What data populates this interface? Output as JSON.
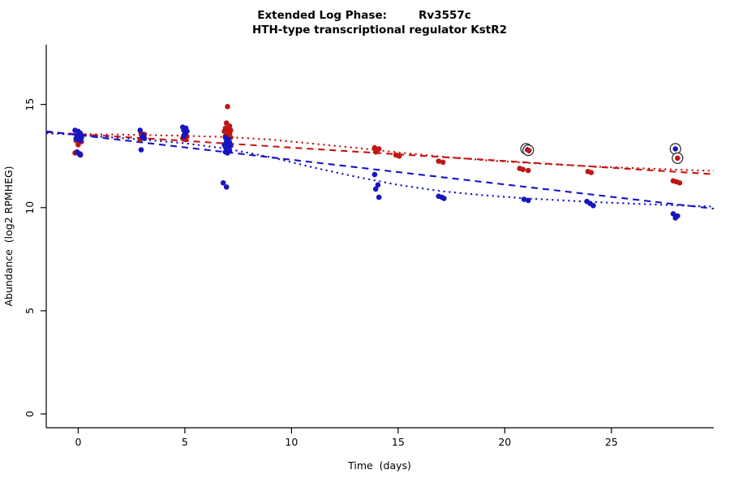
{
  "chart_data": {
    "type": "scatter",
    "title": {
      "prefix": "Extended Log Phase:",
      "gene": "Rv3557c",
      "subtitle": "HTH-type transcriptional regulator KstR2"
    },
    "xlabel": "Time  (days)",
    "ylabel": "Abundance  (log2 RPMHEG)",
    "xlim": [
      -1.5,
      29.8
    ],
    "ylim": [
      -0.67,
      17.9
    ],
    "xticks": [
      0,
      5,
      10,
      15,
      20,
      25
    ],
    "yticks": [
      0,
      5,
      10,
      15
    ],
    "grid": false,
    "legend": null,
    "colors": {
      "red": "#c01616",
      "blue": "#1616c0",
      "highlight_ring": "#222222"
    },
    "series": [
      {
        "name": "red-condition",
        "color": "#c01616",
        "points": [
          [
            0.05,
            13.3
          ],
          [
            -0.1,
            13.25
          ],
          [
            0.15,
            13.2
          ],
          [
            0.0,
            13.05
          ],
          [
            -0.15,
            12.65
          ],
          [
            0.1,
            12.6
          ],
          [
            2.95,
            13.6
          ],
          [
            3.1,
            13.55
          ],
          [
            3.0,
            13.45
          ],
          [
            2.9,
            13.3
          ],
          [
            4.95,
            13.5
          ],
          [
            5.1,
            13.45
          ],
          [
            5.0,
            13.4
          ],
          [
            4.9,
            13.35
          ],
          [
            5.05,
            13.3
          ],
          [
            7.0,
            14.9
          ],
          [
            6.95,
            14.1
          ],
          [
            7.1,
            13.95
          ],
          [
            6.9,
            13.85
          ],
          [
            7.05,
            13.8
          ],
          [
            7.15,
            13.75
          ],
          [
            6.85,
            13.7
          ],
          [
            7.0,
            13.65
          ],
          [
            7.1,
            13.6
          ],
          [
            6.95,
            13.55
          ],
          [
            7.05,
            13.5
          ],
          [
            6.9,
            13.45
          ],
          [
            7.15,
            13.4
          ],
          [
            7.0,
            13.35
          ],
          [
            6.98,
            13.25
          ],
          [
            13.9,
            12.9
          ],
          [
            14.1,
            12.85
          ],
          [
            14.0,
            12.75
          ],
          [
            13.95,
            12.7
          ],
          [
            14.9,
            12.55
          ],
          [
            15.05,
            12.5
          ],
          [
            16.9,
            12.25
          ],
          [
            17.1,
            12.2
          ],
          [
            20.7,
            11.9
          ],
          [
            20.85,
            11.85
          ],
          [
            21.1,
            11.8
          ],
          [
            23.9,
            11.75
          ],
          [
            24.05,
            11.7
          ],
          [
            27.9,
            11.3
          ],
          [
            28.05,
            11.25
          ],
          [
            28.2,
            11.2
          ]
        ]
      },
      {
        "name": "blue-condition",
        "color": "#1616c0",
        "points": [
          [
            -0.15,
            13.75
          ],
          [
            0.0,
            13.7
          ],
          [
            0.1,
            13.6
          ],
          [
            -0.05,
            13.5
          ],
          [
            0.05,
            13.45
          ],
          [
            0.15,
            13.4
          ],
          [
            -0.1,
            13.35
          ],
          [
            0.0,
            13.3
          ],
          [
            0.1,
            13.25
          ],
          [
            -0.05,
            12.7
          ],
          [
            0.05,
            12.6
          ],
          [
            0.1,
            12.55
          ],
          [
            2.9,
            13.75
          ],
          [
            3.05,
            13.5
          ],
          [
            3.0,
            13.4
          ],
          [
            3.1,
            13.35
          ],
          [
            2.95,
            12.8
          ],
          [
            4.9,
            13.9
          ],
          [
            5.05,
            13.85
          ],
          [
            4.95,
            13.75
          ],
          [
            5.1,
            13.7
          ],
          [
            5.0,
            13.55
          ],
          [
            4.95,
            13.45
          ],
          [
            6.9,
            13.4
          ],
          [
            7.05,
            13.3
          ],
          [
            6.95,
            13.2
          ],
          [
            7.1,
            13.15
          ],
          [
            7.0,
            13.1
          ],
          [
            6.85,
            13.05
          ],
          [
            7.15,
            13.0
          ],
          [
            6.9,
            12.95
          ],
          [
            7.05,
            12.9
          ],
          [
            6.95,
            12.85
          ],
          [
            7.0,
            12.8
          ],
          [
            7.1,
            12.75
          ],
          [
            6.9,
            12.7
          ],
          [
            7.0,
            12.65
          ],
          [
            6.8,
            11.2
          ],
          [
            6.95,
            11.0
          ],
          [
            13.9,
            11.6
          ],
          [
            14.05,
            11.1
          ],
          [
            13.95,
            10.9
          ],
          [
            14.1,
            10.5
          ],
          [
            16.9,
            10.55
          ],
          [
            17.05,
            10.5
          ],
          [
            17.15,
            10.45
          ],
          [
            20.9,
            10.4
          ],
          [
            21.1,
            10.35
          ],
          [
            23.85,
            10.3
          ],
          [
            24.0,
            10.2
          ],
          [
            24.15,
            10.1
          ],
          [
            27.9,
            9.7
          ],
          [
            28.1,
            9.6
          ],
          [
            28.0,
            9.5
          ]
        ]
      }
    ],
    "highlighted_points": [
      {
        "x": 21.0,
        "y": 12.85,
        "color": "#1616c0"
      },
      {
        "x": 21.1,
        "y": 12.78,
        "color": "#c01616"
      },
      {
        "x": 28.0,
        "y": 12.85,
        "color": "#1616c0"
      },
      {
        "x": 28.1,
        "y": 12.4,
        "color": "#c01616"
      }
    ],
    "trend_lines": [
      {
        "name": "red-dashed-fit",
        "color": "#c81414",
        "style": "dashed",
        "points": [
          [
            -1.5,
            13.66
          ],
          [
            29.8,
            11.62
          ]
        ]
      },
      {
        "name": "red-dotted-fit",
        "color": "#c81414",
        "style": "dotted",
        "points": [
          [
            -1.5,
            13.6
          ],
          [
            0,
            13.57
          ],
          [
            3,
            13.52
          ],
          [
            5,
            13.48
          ],
          [
            7,
            13.42
          ],
          [
            9,
            13.3
          ],
          [
            11,
            13.1
          ],
          [
            13,
            12.9
          ],
          [
            15,
            12.68
          ],
          [
            17,
            12.48
          ],
          [
            19,
            12.3
          ],
          [
            21,
            12.17
          ],
          [
            24,
            12.0
          ],
          [
            27,
            11.88
          ],
          [
            29.8,
            11.78
          ]
        ]
      },
      {
        "name": "blue-dashed-fit",
        "color": "#1414c8",
        "style": "dashed",
        "points": [
          [
            -1.5,
            13.7
          ],
          [
            29.8,
            9.95
          ]
        ]
      },
      {
        "name": "blue-dotted-fit",
        "color": "#1414c8",
        "style": "dotted",
        "points": [
          [
            -1.5,
            13.62
          ],
          [
            0,
            13.52
          ],
          [
            3,
            13.3
          ],
          [
            5,
            13.12
          ],
          [
            7,
            12.85
          ],
          [
            9,
            12.45
          ],
          [
            11,
            11.95
          ],
          [
            13,
            11.5
          ],
          [
            15,
            11.1
          ],
          [
            17,
            10.8
          ],
          [
            19,
            10.6
          ],
          [
            21,
            10.45
          ],
          [
            24,
            10.28
          ],
          [
            27,
            10.15
          ],
          [
            29.8,
            10.05
          ]
        ]
      }
    ]
  }
}
